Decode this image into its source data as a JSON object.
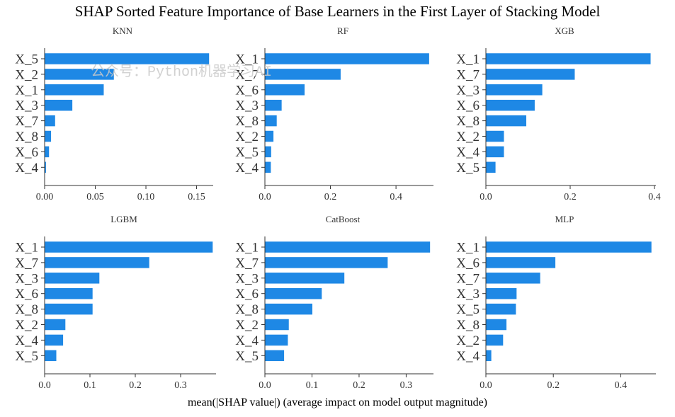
{
  "title": "SHAP Sorted Feature Importance of Base Learners in the First Layer of Stacking Model",
  "xlabel": "mean(|SHAP value|) (average impact on model output magnitude)",
  "watermark": "公众号：Python机器学习AI",
  "colors": {
    "bar": "#1e88e5",
    "axis": "#333333"
  },
  "chart_data": [
    {
      "type": "bar",
      "orientation": "horizontal",
      "title": "KNN",
      "categories": [
        "X_5",
        "X_2",
        "X_1",
        "X_3",
        "X_7",
        "X_8",
        "X_6",
        "X_4"
      ],
      "values": [
        0.162,
        0.068,
        0.058,
        0.027,
        0.01,
        0.006,
        0.004,
        0.001
      ],
      "xlim": [
        0,
        0.165
      ],
      "xticks": [
        0.0,
        0.05,
        0.1,
        0.15
      ],
      "xtick_labels": [
        "0.00",
        "0.05",
        "0.10",
        "0.15"
      ]
    },
    {
      "type": "bar",
      "orientation": "horizontal",
      "title": "RF",
      "categories": [
        "X_1",
        "X_7",
        "X_6",
        "X_3",
        "X_8",
        "X_2",
        "X_5",
        "X_4"
      ],
      "values": [
        0.5,
        0.23,
        0.12,
        0.05,
        0.035,
        0.025,
        0.018,
        0.017
      ],
      "xlim": [
        0,
        0.51
      ],
      "xticks": [
        0.0,
        0.2,
        0.4
      ],
      "xtick_labels": [
        "0.0",
        "0.2",
        "0.4"
      ]
    },
    {
      "type": "bar",
      "orientation": "horizontal",
      "title": "XGB",
      "categories": [
        "X_1",
        "X_7",
        "X_3",
        "X_6",
        "X_8",
        "X_2",
        "X_4",
        "X_5"
      ],
      "values": [
        0.39,
        0.21,
        0.133,
        0.115,
        0.095,
        0.042,
        0.042,
        0.022
      ],
      "xlim": [
        0,
        0.4
      ],
      "xticks": [
        0.0,
        0.2,
        0.4
      ],
      "xtick_labels": [
        "0.0",
        "0.2",
        "0.4"
      ]
    },
    {
      "type": "bar",
      "orientation": "horizontal",
      "title": "LGBM",
      "categories": [
        "X_1",
        "X_7",
        "X_3",
        "X_6",
        "X_8",
        "X_2",
        "X_4",
        "X_5"
      ],
      "values": [
        0.37,
        0.23,
        0.12,
        0.105,
        0.105,
        0.045,
        0.04,
        0.025
      ],
      "xlim": [
        0,
        0.375
      ],
      "xticks": [
        0.0,
        0.1,
        0.2,
        0.3
      ],
      "xtick_labels": [
        "0.0",
        "0.1",
        "0.2",
        "0.3"
      ]
    },
    {
      "type": "bar",
      "orientation": "horizontal",
      "title": "CatBoost",
      "categories": [
        "X_1",
        "X_7",
        "X_3",
        "X_6",
        "X_8",
        "X_2",
        "X_4",
        "X_5"
      ],
      "values": [
        0.35,
        0.26,
        0.168,
        0.12,
        0.1,
        0.05,
        0.048,
        0.04
      ],
      "xlim": [
        0,
        0.355
      ],
      "xticks": [
        0.0,
        0.1,
        0.2,
        0.3
      ],
      "xtick_labels": [
        "0.0",
        "0.1",
        "0.2",
        "0.3"
      ]
    },
    {
      "type": "bar",
      "orientation": "horizontal",
      "title": "MLP",
      "categories": [
        "X_1",
        "X_6",
        "X_7",
        "X_3",
        "X_5",
        "X_8",
        "X_2",
        "X_4"
      ],
      "values": [
        0.49,
        0.205,
        0.16,
        0.09,
        0.088,
        0.06,
        0.05,
        0.015
      ],
      "xlim": [
        0,
        0.5
      ],
      "xticks": [
        0.0,
        0.2,
        0.4
      ],
      "xtick_labels": [
        "0.0",
        "0.2",
        "0.4"
      ]
    }
  ]
}
